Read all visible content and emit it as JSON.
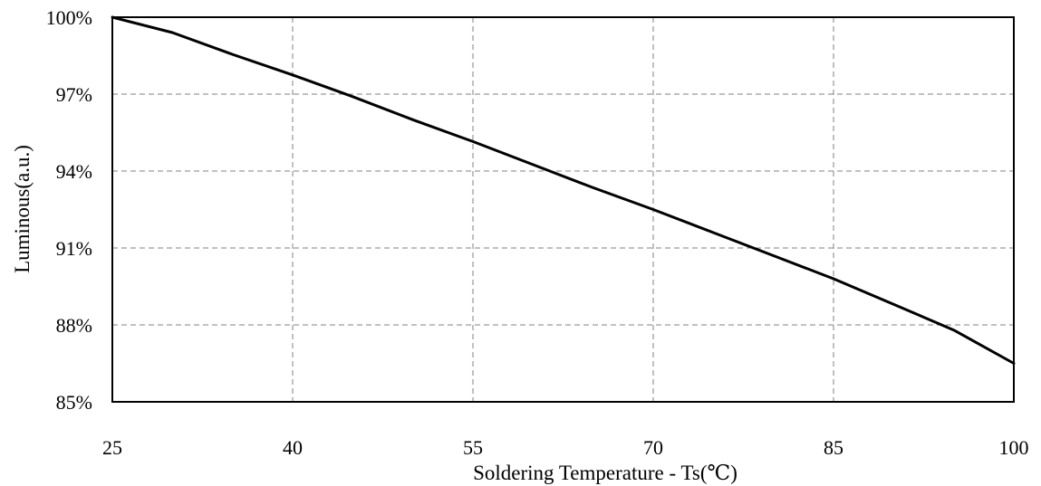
{
  "chart_data": {
    "type": "line",
    "title": "",
    "xlabel": "Soldering Temperature - Ts(℃)",
    "ylabel": "Luminous(a.u.)",
    "xlim": [
      25,
      100
    ],
    "ylim": [
      85,
      100
    ],
    "x_ticks": [
      25,
      40,
      55,
      70,
      85,
      100
    ],
    "x_tick_labels": [
      "25",
      "40",
      "55",
      "70",
      "85",
      "100"
    ],
    "y_ticks": [
      85,
      88,
      91,
      94,
      97,
      100
    ],
    "y_tick_labels": [
      "85%",
      "88%",
      "91%",
      "94%",
      "97%",
      "100%"
    ],
    "grid": true,
    "legend": "none",
    "line_color": "#000000",
    "grid_color": "#808080",
    "series": [
      {
        "x": [
          25,
          30,
          35,
          40,
          45,
          50,
          55,
          60,
          65,
          70,
          75,
          80,
          85,
          90,
          95,
          100
        ],
        "y": [
          100,
          99.4,
          98.55,
          97.75,
          96.9,
          96.0,
          95.15,
          94.25,
          93.35,
          92.5,
          91.6,
          90.7,
          89.8,
          88.8,
          87.8,
          86.5
        ]
      }
    ]
  }
}
